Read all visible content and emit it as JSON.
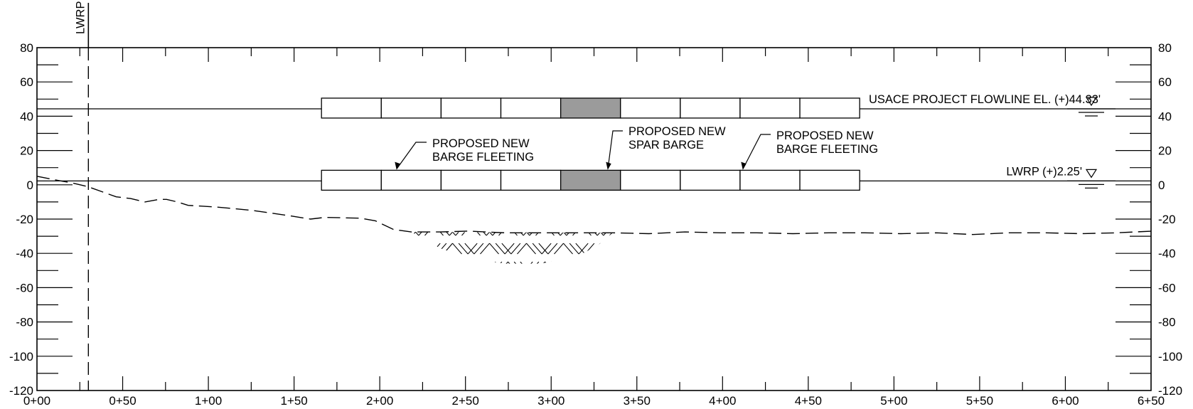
{
  "drawing": {
    "y_axis": {
      "range": [
        -120,
        80
      ],
      "major_step": 20,
      "labels": [
        "80",
        "60",
        "40",
        "20",
        "0",
        "-20",
        "-40",
        "-60",
        "-80",
        "-100",
        "-120"
      ]
    },
    "x_axis": {
      "range_ft": [
        0,
        650
      ],
      "major_step_ft": 50,
      "labels": [
        "0+00",
        "0+50",
        "1+00",
        "1+50",
        "2+00",
        "2+50",
        "3+00",
        "3+50",
        "4+00",
        "4+50",
        "5+00",
        "5+50",
        "6+00",
        "6+50"
      ]
    },
    "reference_line": {
      "label": "LWRP",
      "station_ft": 30
    },
    "water_levels": [
      {
        "label": "USACE PROJECT FLOWLINE EL. (+)44.33'",
        "elevation": 44.33
      },
      {
        "label": "LWRP (+)2.25'",
        "elevation": 2.25
      }
    ],
    "barge_rows": [
      {
        "elevation": 44.33,
        "start_ft": 166,
        "end_ft": 480,
        "cells": 9,
        "highlight_cell": 4
      },
      {
        "elevation": 2.25,
        "start_ft": 166,
        "end_ft": 480,
        "cells": 9,
        "highlight_cell": 4
      }
    ],
    "callouts": [
      {
        "line1": "PROPOSED NEW",
        "line2": "BARGE FLEETING"
      },
      {
        "line1": "PROPOSED NEW",
        "line2": "SPAR BARGE"
      },
      {
        "line1": "PROPOSED NEW",
        "line2": "BARGE FLEETING"
      }
    ],
    "ground_profile": [
      [
        0,
        5
      ],
      [
        30,
        2.5
      ],
      [
        50,
        1
      ],
      [
        70,
        -1
      ],
      [
        90,
        -4
      ],
      [
        110,
        -7
      ],
      [
        130,
        -8
      ],
      [
        150,
        -10
      ],
      [
        170,
        -8.5
      ],
      [
        180,
        -8.5
      ],
      [
        195,
        -10
      ],
      [
        210,
        -12
      ],
      [
        250,
        -13
      ],
      [
        300,
        -15
      ],
      [
        350,
        -18
      ],
      [
        380,
        -20
      ],
      [
        400,
        -19
      ],
      [
        450,
        -19.5
      ],
      [
        470,
        -21
      ],
      [
        495,
        -26
      ],
      [
        520,
        -27.5
      ],
      [
        560,
        -27.5
      ],
      [
        600,
        -27
      ],
      [
        650,
        -28
      ],
      [
        700,
        -28
      ],
      [
        750,
        -28
      ],
      [
        800,
        -28
      ],
      [
        850,
        -28.5
      ],
      [
        900,
        -27.5
      ],
      [
        950,
        -28
      ],
      [
        1000,
        -28
      ],
      [
        1050,
        -28.5
      ],
      [
        1100,
        -28
      ],
      [
        1150,
        -28
      ],
      [
        1200,
        -28.5
      ],
      [
        1250,
        -28
      ],
      [
        1300,
        -29
      ],
      [
        1350,
        -28
      ],
      [
        1400,
        -28
      ],
      [
        1450,
        -28.5
      ],
      [
        1500,
        -28
      ],
      [
        1550,
        -27
      ]
    ],
    "dredge_area": {
      "outline": [
        [
          520,
          -27.5
        ],
        [
          560,
          -37
        ],
        [
          600,
          -43
        ],
        [
          650,
          -46
        ],
        [
          700,
          -46
        ],
        [
          750,
          -42
        ],
        [
          780,
          -35
        ],
        [
          800,
          -28
        ]
      ],
      "top_elevation": -27.5
    }
  }
}
